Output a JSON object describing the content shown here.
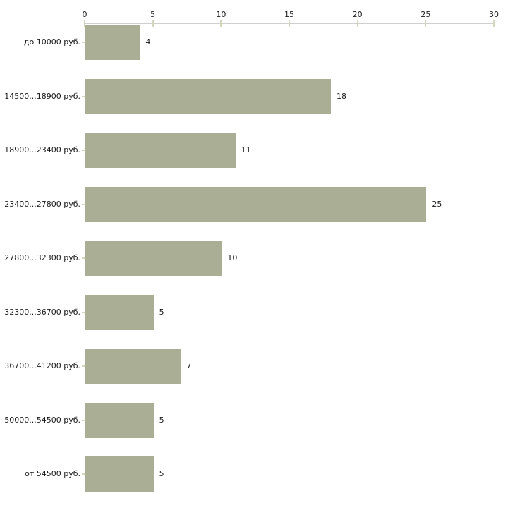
{
  "chart_data": {
    "type": "bar",
    "orientation": "horizontal",
    "title": "",
    "xlabel": "",
    "ylabel": "",
    "axis_position": "top",
    "grid": false,
    "legend": false,
    "categories": [
      "до 10000 руб.",
      "14500...18900 руб.",
      "18900...23400 руб.",
      "23400...27800 руб.",
      "27800...32300 руб.",
      "32300...36700 руб.",
      "36700...41200 руб.",
      "50000...54500 руб.",
      "от 54500 руб."
    ],
    "values": [
      4,
      18,
      11,
      25,
      10,
      5,
      7,
      5,
      5
    ],
    "x_ticks": [
      0,
      5,
      10,
      15,
      20,
      25,
      30
    ],
    "xlim": [
      0,
      30
    ],
    "colors": {
      "bar_fill": "#aaae95",
      "axis_line": "#cfcfcf",
      "tick_mark": "#d4d6bf",
      "text": "#1a1a1a",
      "background": "#ffffff"
    }
  }
}
